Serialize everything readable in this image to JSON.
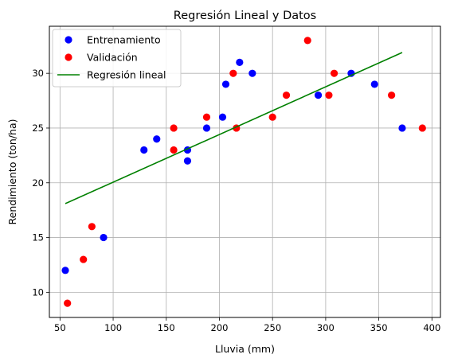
{
  "chart_data": {
    "type": "scatter",
    "title": "Regresión Lineal y Datos",
    "xlabel": "Lluvia (mm)",
    "ylabel": "Rendimiento (ton/ha)",
    "xlim": [
      40,
      408
    ],
    "ylim": [
      7.7,
      34.3
    ],
    "xticks": [
      50,
      100,
      150,
      200,
      250,
      300,
      350,
      400
    ],
    "yticks": [
      10,
      15,
      20,
      25,
      30
    ],
    "grid": true,
    "legend_position": "top-left",
    "series": [
      {
        "name": "Entrenamiento",
        "kind": "scatter",
        "color": "#0000ff",
        "points": [
          [
            55,
            12
          ],
          [
            91,
            15
          ],
          [
            129,
            23
          ],
          [
            141,
            24
          ],
          [
            170,
            22
          ],
          [
            170,
            23
          ],
          [
            188,
            25
          ],
          [
            203,
            26
          ],
          [
            206,
            29
          ],
          [
            219,
            31
          ],
          [
            231,
            30
          ],
          [
            293,
            28
          ],
          [
            324,
            30
          ],
          [
            346,
            29
          ],
          [
            372,
            25
          ]
        ]
      },
      {
        "name": "Validación",
        "kind": "scatter",
        "color": "#ff0000",
        "points": [
          [
            57,
            9
          ],
          [
            72,
            13
          ],
          [
            80,
            16
          ],
          [
            157,
            25
          ],
          [
            157,
            23
          ],
          [
            188,
            26
          ],
          [
            213,
            30
          ],
          [
            216,
            25
          ],
          [
            250,
            26
          ],
          [
            263,
            28
          ],
          [
            283,
            33
          ],
          [
            303,
            28
          ],
          [
            308,
            30
          ],
          [
            362,
            28
          ],
          [
            391,
            25
          ]
        ]
      },
      {
        "name": "Regresión lineal",
        "kind": "line",
        "color": "#008000",
        "points": [
          [
            55,
            18.1
          ],
          [
            372,
            31.9
          ]
        ]
      }
    ]
  }
}
